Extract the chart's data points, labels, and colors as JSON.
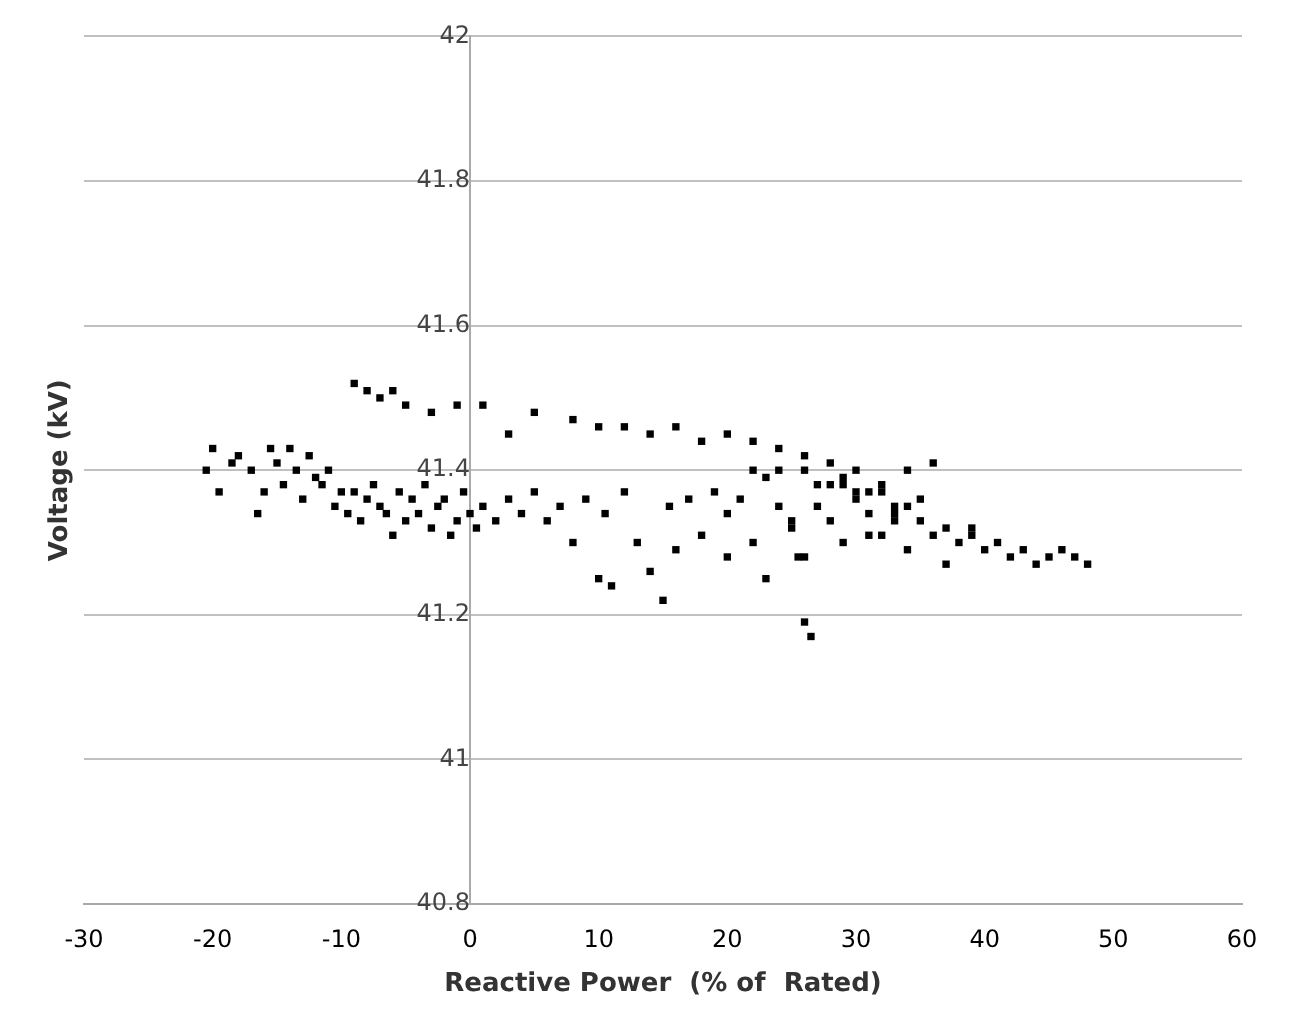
{
  "chart_data": {
    "type": "scatter",
    "xlabel": "Reactive Power  (% of  Rated)",
    "ylabel": "Voltage (kV)",
    "xlim": [
      -30,
      60
    ],
    "xticks": [
      -30,
      -20,
      -10,
      0,
      10,
      20,
      30,
      40,
      50,
      60
    ],
    "ylim": [
      40.8,
      42
    ],
    "yticks": [
      40.8,
      41,
      41.2,
      41.4,
      41.6,
      41.8,
      42
    ],
    "grid": "y",
    "marker": "square",
    "legend": false,
    "series": [
      {
        "color": "#000000",
        "x": [
          -20.5,
          -20,
          -19.5,
          -18.5,
          -18,
          -17,
          -16.5,
          -16,
          -15.5,
          -15,
          -14.5,
          -14,
          -13.5,
          -13,
          -12.5,
          -12,
          -11.5,
          -11,
          -10.5,
          -10,
          -9.5,
          -9,
          -8.5,
          -8,
          -7.5,
          -7,
          -6.5,
          -6,
          -5.5,
          -5,
          -4.5,
          -4,
          -3.5,
          -3,
          -2.5,
          -2,
          -1.5,
          -1,
          -0.5,
          0,
          0.5,
          1,
          2,
          3,
          4,
          5,
          6,
          7,
          8,
          9,
          10,
          10.5,
          11,
          12,
          13,
          14,
          15,
          15.5,
          16,
          17,
          18,
          19,
          20,
          21,
          22,
          23,
          24,
          25,
          25.5,
          26,
          26.5,
          27,
          28,
          29,
          30,
          31,
          32,
          33,
          34,
          35,
          36,
          37,
          38,
          39,
          40,
          41,
          42,
          43,
          44,
          45,
          46,
          47,
          48,
          -9,
          -8,
          -7,
          -6,
          -5,
          -3,
          -1,
          1,
          3,
          5,
          8,
          10,
          12,
          14,
          16,
          18,
          20,
          22,
          24,
          26,
          28,
          30,
          32,
          34,
          36,
          22,
          24,
          26,
          28,
          30,
          32,
          34,
          25,
          27,
          29,
          31,
          33,
          35,
          37,
          39,
          20,
          23,
          26,
          29,
          31,
          33
        ],
        "values": [
          41.4,
          41.43,
          41.37,
          41.41,
          41.42,
          41.4,
          41.34,
          41.37,
          41.43,
          41.41,
          41.38,
          41.43,
          41.4,
          41.36,
          41.42,
          41.39,
          41.38,
          41.4,
          41.35,
          41.37,
          41.34,
          41.37,
          41.33,
          41.36,
          41.38,
          41.35,
          41.34,
          41.31,
          41.37,
          41.33,
          41.36,
          41.34,
          41.38,
          41.32,
          41.35,
          41.36,
          41.31,
          41.33,
          41.37,
          41.34,
          41.32,
          41.35,
          41.33,
          41.36,
          41.34,
          41.37,
          41.33,
          41.35,
          41.3,
          41.36,
          41.25,
          41.34,
          41.24,
          41.37,
          41.3,
          41.26,
          41.22,
          41.35,
          41.29,
          41.36,
          41.31,
          41.37,
          41.34,
          41.36,
          41.3,
          41.39,
          41.35,
          41.32,
          41.28,
          41.19,
          41.17,
          41.35,
          41.33,
          41.3,
          41.37,
          41.34,
          41.31,
          41.35,
          41.29,
          41.33,
          41.31,
          41.27,
          41.3,
          41.32,
          41.29,
          41.3,
          41.28,
          41.29,
          41.27,
          41.28,
          41.29,
          41.28,
          41.27,
          41.52,
          41.51,
          41.5,
          41.51,
          41.49,
          41.48,
          41.49,
          41.49,
          41.45,
          41.48,
          41.47,
          41.46,
          41.46,
          41.45,
          41.46,
          41.44,
          41.45,
          41.44,
          41.43,
          41.42,
          41.41,
          41.4,
          41.38,
          41.4,
          41.41,
          41.4,
          41.4,
          41.4,
          41.38,
          41.36,
          41.37,
          41.35,
          41.33,
          41.38,
          41.39,
          41.37,
          41.34,
          41.36,
          41.32,
          41.31,
          41.28,
          41.25,
          41.28,
          41.38,
          41.31,
          41.33
        ]
      }
    ]
  }
}
